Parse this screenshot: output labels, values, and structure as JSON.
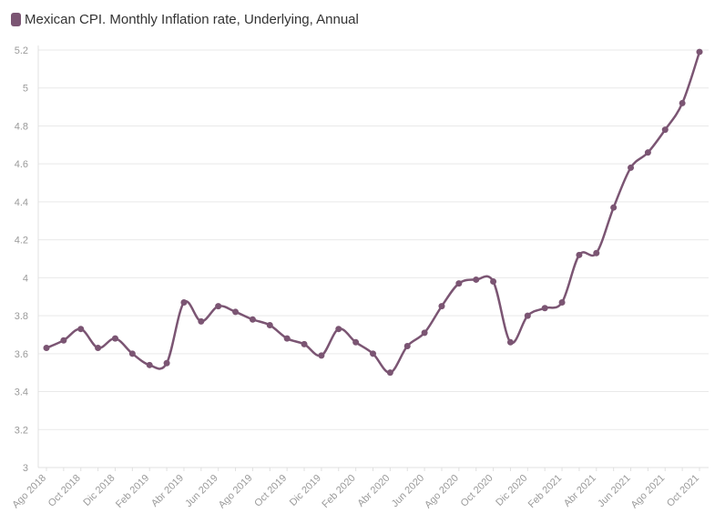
{
  "chart_data": {
    "type": "line",
    "series": [
      {
        "name": "Mexican CPI. Monthly Inflation rate, Underlying, Annual",
        "color": "#7b5573",
        "values": [
          3.63,
          3.67,
          3.73,
          3.63,
          3.68,
          3.6,
          3.54,
          3.55,
          3.87,
          3.77,
          3.85,
          3.82,
          3.78,
          3.75,
          3.68,
          3.65,
          3.59,
          3.73,
          3.66,
          3.6,
          3.5,
          3.64,
          3.71,
          3.85,
          3.97,
          3.99,
          3.98,
          3.66,
          3.8,
          3.84,
          3.87,
          4.12,
          4.13,
          4.37,
          4.58,
          4.66,
          4.78,
          4.92,
          5.19
        ]
      }
    ],
    "x": [
      "Ago 2018",
      "Sep 2018",
      "Oct 2018",
      "Nov 2018",
      "Dic 2018",
      "Ene 2019",
      "Feb 2019",
      "Mar 2019",
      "Abr 2019",
      "May 2019",
      "Jun 2019",
      "Jul 2019",
      "Ago 2019",
      "Sep 2019",
      "Oct 2019",
      "Nov 2019",
      "Dic 2019",
      "Ene 2020",
      "Feb 2020",
      "Mar 2020",
      "Abr 2020",
      "May 2020",
      "Jun 2020",
      "Jul 2020",
      "Ago 2020",
      "Sep 2020",
      "Oct 2020",
      "Nov 2020",
      "Dic 2020",
      "Ene 2021",
      "Feb 2021",
      "Mar 2021",
      "Abr 2021",
      "May 2021",
      "Jun 2021",
      "Jul 2021",
      "Ago 2021",
      "Sep 2021",
      "Oct 2021"
    ],
    "x_tick_labels": [
      "Ago 2018",
      "Oct 2018",
      "Dic 2018",
      "Feb 2019",
      "Abr 2019",
      "Jun 2019",
      "Ago 2019",
      "Oct 2019",
      "Dic 2019",
      "Feb 2020",
      "Abr 2020",
      "Jun 2020",
      "Ago 2020",
      "Oct 2020",
      "Dic 2020",
      "Feb 2021",
      "Abr 2021",
      "Jun 2021",
      "Ago 2021",
      "Oct 2021"
    ],
    "y_ticks": [
      "3",
      "3.2",
      "3.4",
      "3.6",
      "3.8",
      "4",
      "4.2",
      "4.4",
      "4.6",
      "4.8",
      "5",
      "5.2"
    ],
    "ylim": [
      3,
      5.2
    ],
    "grid": true,
    "legend_position": "top-left"
  }
}
